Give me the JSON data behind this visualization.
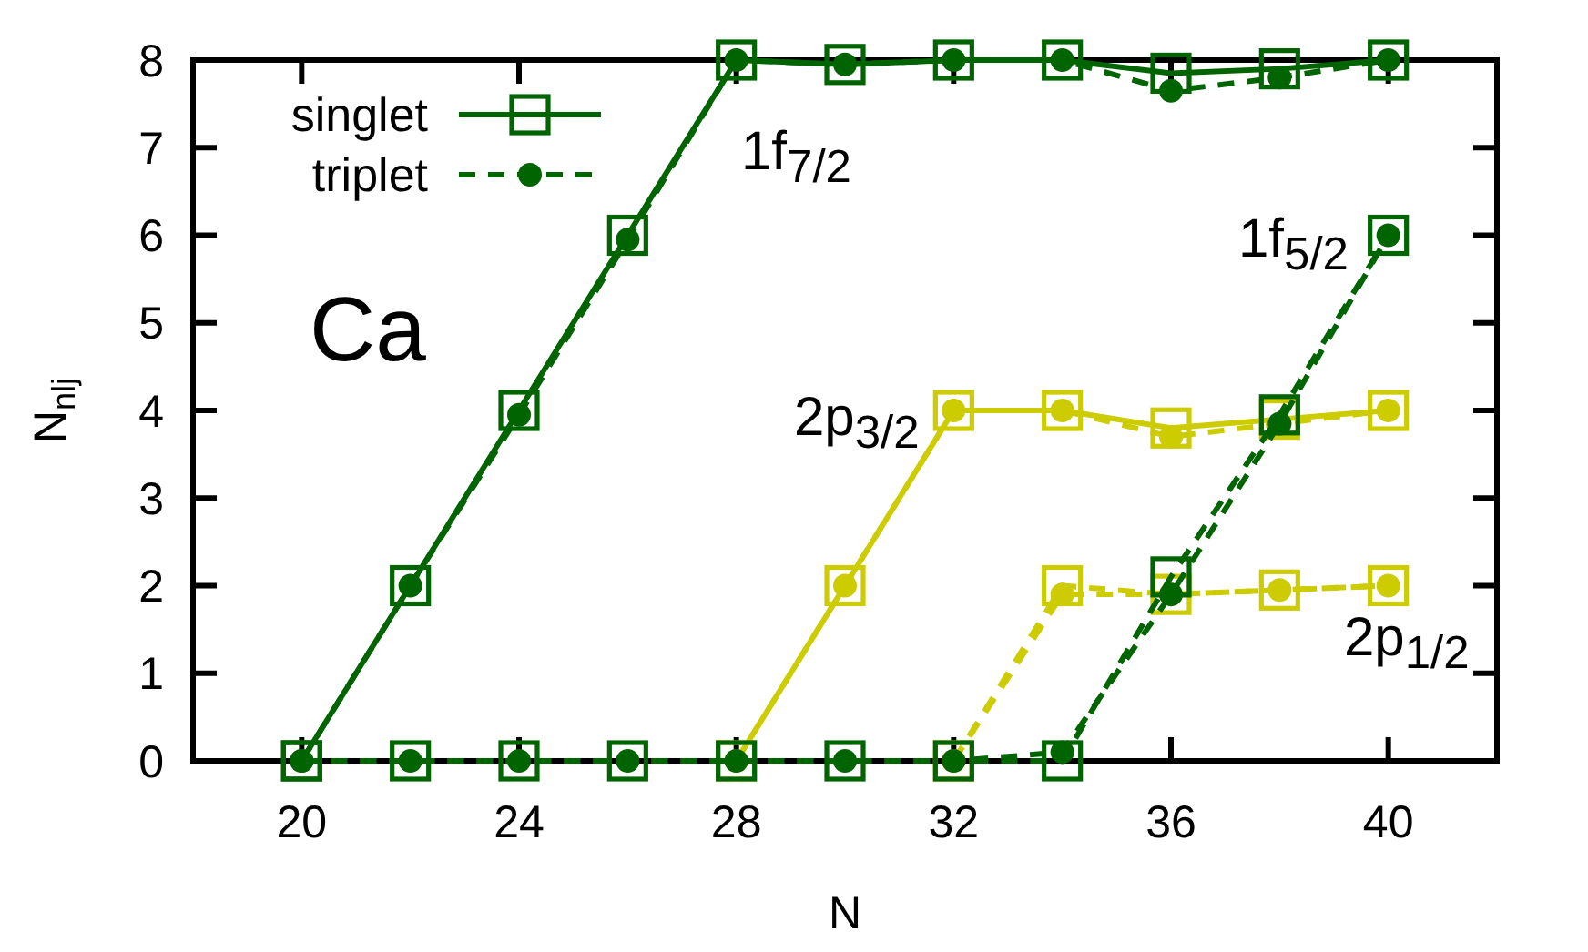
{
  "chart_data": {
    "type": "line",
    "title": "Ca",
    "xlabel": "N",
    "ylabel": "N$_{nlj}$",
    "x": [
      20,
      22,
      24,
      26,
      28,
      30,
      32,
      34,
      36,
      38,
      40
    ],
    "xlim": [
      18,
      42
    ],
    "ylim": [
      0,
      8
    ],
    "xticks": [
      20,
      24,
      28,
      32,
      36,
      40
    ],
    "yticks": [
      0,
      1,
      2,
      3,
      4,
      5,
      6,
      7,
      8
    ],
    "legend": "top left",
    "series": [
      {
        "color": "#cccc00",
        "marker": "circle",
        "line_style": "dashed",
        "values": [
          null,
          null,
          null,
          null,
          0,
          2,
          4,
          4,
          3.7,
          3.85,
          4
        ]
      },
      {
        "color": "#cccc00",
        "marker": "square",
        "line_style": "solid",
        "values": [
          null,
          null,
          null,
          null,
          0,
          2,
          4,
          4,
          3.8,
          3.9,
          4
        ]
      },
      {
        "color": "#cccc00",
        "marker": "circle",
        "line_style": "dashed",
        "values": [
          null,
          null,
          null,
          null,
          null,
          null,
          0,
          1.9,
          1.9,
          1.95,
          2
        ]
      },
      {
        "color": "#cccc00",
        "marker": "square",
        "line_style": "dashed",
        "values": [
          null,
          null,
          null,
          null,
          null,
          null,
          0,
          2,
          1.9,
          1.95,
          2
        ]
      },
      {
        "name": "singlet",
        "color": "#006400",
        "marker": "square",
        "line_style": "solid",
        "values": [
          0,
          2,
          4,
          6,
          8,
          7.95,
          8,
          8,
          7.85,
          7.9,
          8
        ]
      },
      {
        "name": "triplet",
        "color": "#006400",
        "marker": "circle",
        "line_style": "dashed",
        "values": [
          0,
          2,
          3.95,
          5.95,
          8,
          7.95,
          8,
          8,
          7.65,
          7.8,
          8
        ]
      },
      {
        "color": "#006400",
        "marker": "square",
        "line_style": "dashed",
        "values": [
          0,
          0,
          0,
          0,
          0,
          0,
          0,
          0,
          2.1,
          3.95,
          6
        ]
      },
      {
        "color": "#006400",
        "marker": "circle",
        "line_style": "dashed",
        "values": [
          0,
          0,
          0,
          0,
          0,
          0,
          0,
          0.1,
          1.9,
          3.85,
          6
        ]
      }
    ],
    "annotations": [
      "1f$_{7/2}$",
      "1f$_{5/2}$",
      "2p$_{3/2}$",
      "2p$_{1/2}$"
    ]
  }
}
